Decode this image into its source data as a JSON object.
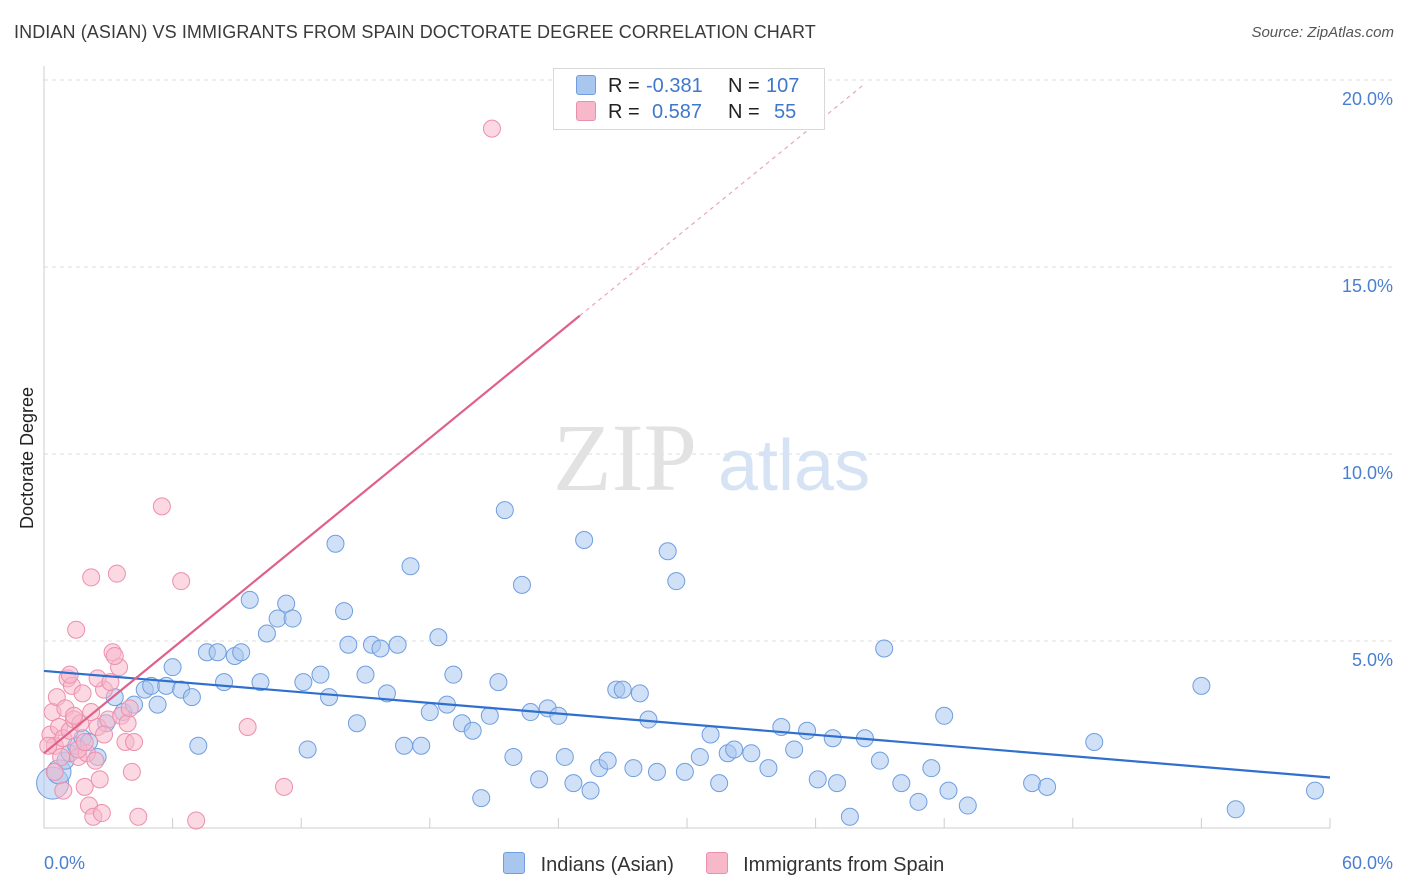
{
  "title": "INDIAN (ASIAN) VS IMMIGRANTS FROM SPAIN DOCTORATE DEGREE CORRELATION CHART",
  "source": "Source: ZipAtlas.com",
  "watermark": {
    "zip": "ZIP",
    "atlas": "atlas"
  },
  "colors": {
    "blue_fill": "#a9c6ef",
    "blue_stroke": "#6f9ee0",
    "blue_line": "#2f6fce",
    "pink_fill": "#f7b8ca",
    "pink_stroke": "#ec8fae",
    "pink_line": "#e0608a",
    "grid": "#dddddd",
    "tick": "#4a7fd0"
  },
  "legend": {
    "rows": [
      {
        "r_label": "R =",
        "r_value": "-0.381",
        "n_label": "N =",
        "n_value": "107"
      },
      {
        "r_label": "R =",
        "r_value": "0.587",
        "n_label": "N =",
        "n_value": "55"
      }
    ]
  },
  "bottom_legend": [
    "Indians (Asian)",
    "Immigrants from Spain"
  ],
  "chart_data": {
    "type": "scatter",
    "title": "INDIAN (ASIAN) VS IMMIGRANTS FROM SPAIN DOCTORATE DEGREE CORRELATION CHART",
    "xlabel": "",
    "ylabel": "Doctorate Degree",
    "xlim": [
      0,
      60
    ],
    "ylim": [
      0,
      20.5
    ],
    "x_tick_labels": [
      "0.0%",
      "60.0%"
    ],
    "y_ticks": [
      5,
      10,
      15,
      20
    ],
    "y_tick_labels": [
      "5.0%",
      "10.0%",
      "15.0%",
      "20.0%"
    ],
    "grid": true,
    "series": [
      {
        "name": "Indians (Asian)",
        "color": "blue",
        "r": -0.381,
        "n": 107,
        "trend": {
          "x": [
            0,
            60
          ],
          "y": [
            4.2,
            1.35
          ],
          "dashed_extension": false
        },
        "points": [
          [
            0.4,
            1.2,
            1
          ],
          [
            0.7,
            1.5,
            1
          ],
          [
            1.0,
            1.8,
            1
          ],
          [
            1.2,
            2.0,
            1
          ],
          [
            1.5,
            2.2,
            1
          ],
          [
            1.8,
            2.4,
            1
          ],
          [
            2.1,
            2.3,
            1
          ],
          [
            2.5,
            1.9,
            1
          ],
          [
            2.9,
            2.8,
            1
          ],
          [
            3.3,
            3.5,
            1
          ],
          [
            3.7,
            3.1,
            1
          ],
          [
            4.2,
            3.3,
            1
          ],
          [
            4.7,
            3.7,
            1
          ],
          [
            5.0,
            3.8,
            1
          ],
          [
            5.3,
            3.3,
            1
          ],
          [
            5.7,
            3.8,
            1
          ],
          [
            6.0,
            4.3,
            1
          ],
          [
            6.4,
            3.7,
            1
          ],
          [
            6.9,
            3.5,
            1
          ],
          [
            7.2,
            2.2,
            1
          ],
          [
            7.6,
            4.7,
            1
          ],
          [
            8.1,
            4.7,
            1
          ],
          [
            8.4,
            3.9,
            1
          ],
          [
            8.9,
            4.6,
            1
          ],
          [
            9.2,
            4.7,
            1
          ],
          [
            9.6,
            6.1,
            1
          ],
          [
            10.1,
            3.9,
            1
          ],
          [
            10.4,
            5.2,
            1
          ],
          [
            10.9,
            5.6,
            1
          ],
          [
            11.3,
            6.0,
            1
          ],
          [
            11.6,
            5.6,
            1
          ],
          [
            12.1,
            3.9,
            1
          ],
          [
            12.3,
            2.1,
            1
          ],
          [
            12.9,
            4.1,
            1
          ],
          [
            13.3,
            3.5,
            1
          ],
          [
            13.6,
            7.6,
            1
          ],
          [
            14.0,
            5.8,
            1
          ],
          [
            14.2,
            4.9,
            1
          ],
          [
            14.6,
            2.8,
            1
          ],
          [
            15.0,
            4.1,
            1
          ],
          [
            15.3,
            4.9,
            1
          ],
          [
            15.7,
            4.8,
            1
          ],
          [
            16.0,
            3.6,
            1
          ],
          [
            16.5,
            4.9,
            1
          ],
          [
            16.8,
            2.2,
            1
          ],
          [
            17.1,
            7.0,
            1
          ],
          [
            17.6,
            2.2,
            1
          ],
          [
            18.0,
            3.1,
            1
          ],
          [
            18.4,
            5.1,
            1
          ],
          [
            18.8,
            3.3,
            1
          ],
          [
            19.1,
            4.1,
            1
          ],
          [
            19.5,
            2.8,
            1
          ],
          [
            20.0,
            2.6,
            1
          ],
          [
            20.4,
            0.8,
            1
          ],
          [
            20.8,
            3.0,
            1
          ],
          [
            21.2,
            3.9,
            1
          ],
          [
            21.5,
            8.5,
            1
          ],
          [
            21.9,
            1.9,
            1
          ],
          [
            22.3,
            6.5,
            1
          ],
          [
            22.7,
            3.1,
            1
          ],
          [
            23.1,
            1.3,
            1
          ],
          [
            23.5,
            3.2,
            1
          ],
          [
            24.0,
            3.0,
            1
          ],
          [
            24.3,
            1.9,
            1
          ],
          [
            24.7,
            1.2,
            1
          ],
          [
            25.2,
            7.7,
            1
          ],
          [
            25.5,
            1.0,
            1
          ],
          [
            25.9,
            1.6,
            1
          ],
          [
            26.3,
            1.8,
            1
          ],
          [
            26.7,
            3.7,
            1
          ],
          [
            27.0,
            3.7,
            1
          ],
          [
            27.5,
            1.6,
            1
          ],
          [
            27.8,
            3.6,
            1
          ],
          [
            28.2,
            2.9,
            1
          ],
          [
            28.6,
            1.5,
            1
          ],
          [
            29.1,
            7.4,
            1
          ],
          [
            29.5,
            6.6,
            1
          ],
          [
            29.9,
            1.5,
            1
          ],
          [
            30.6,
            1.9,
            1
          ],
          [
            31.1,
            2.5,
            1
          ],
          [
            31.5,
            1.2,
            1
          ],
          [
            31.9,
            2.0,
            1
          ],
          [
            32.2,
            2.1,
            1
          ],
          [
            33.0,
            2.0,
            1
          ],
          [
            33.8,
            1.6,
            1
          ],
          [
            34.4,
            2.7,
            1
          ],
          [
            35.0,
            2.1,
            1
          ],
          [
            35.6,
            2.6,
            1
          ],
          [
            36.1,
            1.3,
            1
          ],
          [
            36.8,
            2.4,
            1
          ],
          [
            37.0,
            1.2,
            1
          ],
          [
            37.6,
            0.3,
            1
          ],
          [
            38.3,
            2.4,
            1
          ],
          [
            39.0,
            1.8,
            1
          ],
          [
            39.2,
            4.8,
            1
          ],
          [
            40.0,
            1.2,
            1
          ],
          [
            40.8,
            0.7,
            1
          ],
          [
            41.4,
            1.6,
            1
          ],
          [
            42.0,
            3.0,
            1
          ],
          [
            42.2,
            1.0,
            1
          ],
          [
            43.1,
            0.6,
            1
          ],
          [
            46.1,
            1.2,
            1
          ],
          [
            46.8,
            1.1,
            1
          ],
          [
            49.0,
            2.3,
            1
          ],
          [
            54.0,
            3.8,
            1
          ],
          [
            55.6,
            0.5,
            1
          ],
          [
            59.3,
            1.0,
            1
          ]
        ]
      },
      {
        "name": "Immigrants from Spain",
        "color": "pink",
        "r": 0.587,
        "n": 55,
        "trend": {
          "x": [
            0,
            25
          ],
          "y": [
            2.0,
            13.7
          ],
          "dashed_to": {
            "x": 38.3,
            "y": 19.9
          }
        },
        "points": [
          [
            0.3,
            2.5,
            1
          ],
          [
            0.4,
            3.1,
            1
          ],
          [
            0.5,
            2.2,
            1
          ],
          [
            0.6,
            3.5,
            1
          ],
          [
            0.7,
            2.7,
            1
          ],
          [
            0.8,
            1.9,
            1
          ],
          [
            0.9,
            2.4,
            1
          ],
          [
            1.0,
            3.2,
            1
          ],
          [
            1.1,
            4.0,
            1
          ],
          [
            1.2,
            2.6,
            1
          ],
          [
            1.3,
            3.8,
            1
          ],
          [
            1.4,
            2.9,
            1
          ],
          [
            1.5,
            5.3,
            1
          ],
          [
            1.6,
            1.9,
            1
          ],
          [
            1.7,
            2.8,
            1
          ],
          [
            1.8,
            3.6,
            1
          ],
          [
            1.9,
            1.1,
            1
          ],
          [
            2.0,
            2.0,
            1
          ],
          [
            2.1,
            0.6,
            1
          ],
          [
            2.2,
            6.7,
            1
          ],
          [
            2.3,
            0.3,
            1
          ],
          [
            2.4,
            1.8,
            1
          ],
          [
            2.5,
            2.7,
            1
          ],
          [
            2.6,
            1.3,
            1
          ],
          [
            2.7,
            0.4,
            1
          ],
          [
            2.8,
            3.7,
            1
          ],
          [
            3.0,
            2.9,
            1
          ],
          [
            3.2,
            4.7,
            1
          ],
          [
            3.4,
            6.8,
            1
          ],
          [
            3.5,
            4.3,
            1
          ],
          [
            3.6,
            3.0,
            1
          ],
          [
            3.8,
            2.3,
            1
          ],
          [
            4.1,
            1.5,
            1
          ],
          [
            4.2,
            2.3,
            1
          ],
          [
            4.4,
            0.3,
            1
          ],
          [
            5.5,
            8.6,
            1
          ],
          [
            6.4,
            6.6,
            1
          ],
          [
            7.1,
            0.2,
            1
          ],
          [
            9.5,
            2.7,
            1
          ],
          [
            11.2,
            1.1,
            1
          ],
          [
            20.9,
            18.7,
            1
          ],
          [
            0.2,
            2.2,
            1
          ],
          [
            0.5,
            1.5,
            1
          ],
          [
            0.9,
            1.0,
            1
          ],
          [
            1.2,
            4.1,
            1
          ],
          [
            1.4,
            3.0,
            1
          ],
          [
            1.6,
            2.1,
            1
          ],
          [
            1.9,
            2.3,
            1
          ],
          [
            2.2,
            3.1,
            1
          ],
          [
            2.5,
            4.0,
            1
          ],
          [
            2.8,
            2.5,
            1
          ],
          [
            3.1,
            3.9,
            1
          ],
          [
            3.3,
            4.6,
            1
          ],
          [
            3.9,
            2.8,
            1
          ],
          [
            4.0,
            3.2,
            1
          ]
        ]
      }
    ]
  }
}
